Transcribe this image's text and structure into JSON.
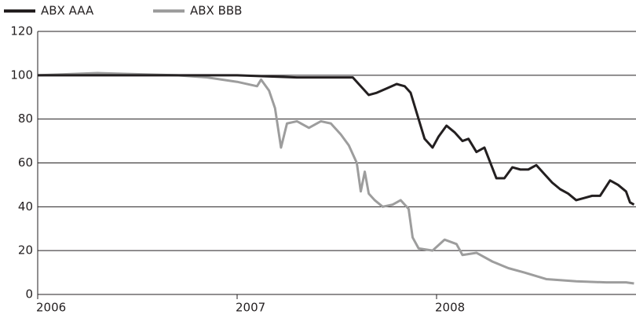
{
  "chart_data": {
    "type": "line",
    "series": [
      {
        "name": "ABX AAA",
        "color": "#231f20",
        "x": [
          2006,
          2006.5,
          2007,
          2007.3,
          2007.58,
          2007.6,
          2007.63,
          2007.66,
          2007.7,
          2007.75,
          2007.8,
          2007.84,
          2007.87,
          2007.91,
          2007.94,
          2007.98,
          2008.01,
          2008.05,
          2008.09,
          2008.13,
          2008.16,
          2008.2,
          2008.24,
          2008.3,
          2008.34,
          2008.38,
          2008.42,
          2008.46,
          2008.5,
          2008.54,
          2008.58,
          2008.62,
          2008.66,
          2008.7,
          2008.74,
          2008.78,
          2008.82,
          2008.87,
          2008.91,
          2008.95,
          2008.97,
          2008.99
        ],
        "values": [
          100,
          100,
          100,
          99,
          99,
          97,
          94,
          91,
          92,
          94,
          96,
          95,
          92,
          80,
          71,
          67,
          72,
          77,
          74,
          70,
          71,
          65,
          67,
          53,
          53,
          58,
          57,
          57,
          59,
          55,
          51,
          48,
          46,
          43,
          44,
          45,
          45,
          52,
          50,
          47,
          42,
          41
        ]
      },
      {
        "name": "ABX BBB",
        "color": "#9d9d9d",
        "x": [
          2006,
          2006.3,
          2006.7,
          2006.85,
          2007,
          2007.1,
          2007.12,
          2007.16,
          2007.19,
          2007.22,
          2007.25,
          2007.3,
          2007.36,
          2007.42,
          2007.47,
          2007.52,
          2007.56,
          2007.6,
          2007.62,
          2007.64,
          2007.66,
          2007.69,
          2007.73,
          2007.78,
          2007.82,
          2007.86,
          2007.88,
          2007.91,
          2007.98,
          2008.04,
          2008.1,
          2008.13,
          2008.2,
          2008.28,
          2008.36,
          2008.44,
          2008.55,
          2008.7,
          2008.85,
          2008.95,
          2008.99
        ],
        "values": [
          100,
          101,
          100,
          99,
          97,
          95,
          98,
          93,
          85,
          67,
          78,
          79,
          76,
          79,
          78,
          73,
          68,
          60,
          47,
          56,
          46,
          43,
          40,
          41,
          43,
          39,
          26,
          21,
          20,
          25,
          23,
          18,
          19,
          15,
          12,
          10,
          7,
          6,
          5.5,
          5.5,
          5
        ]
      }
    ],
    "xlim": [
      2006,
      2009
    ],
    "xticks": [
      2006,
      2007,
      2008
    ],
    "ylim": [
      0,
      120
    ],
    "yticks": [
      0,
      20,
      40,
      60,
      80,
      100,
      120
    ],
    "grid": true,
    "legend": "top-left"
  }
}
